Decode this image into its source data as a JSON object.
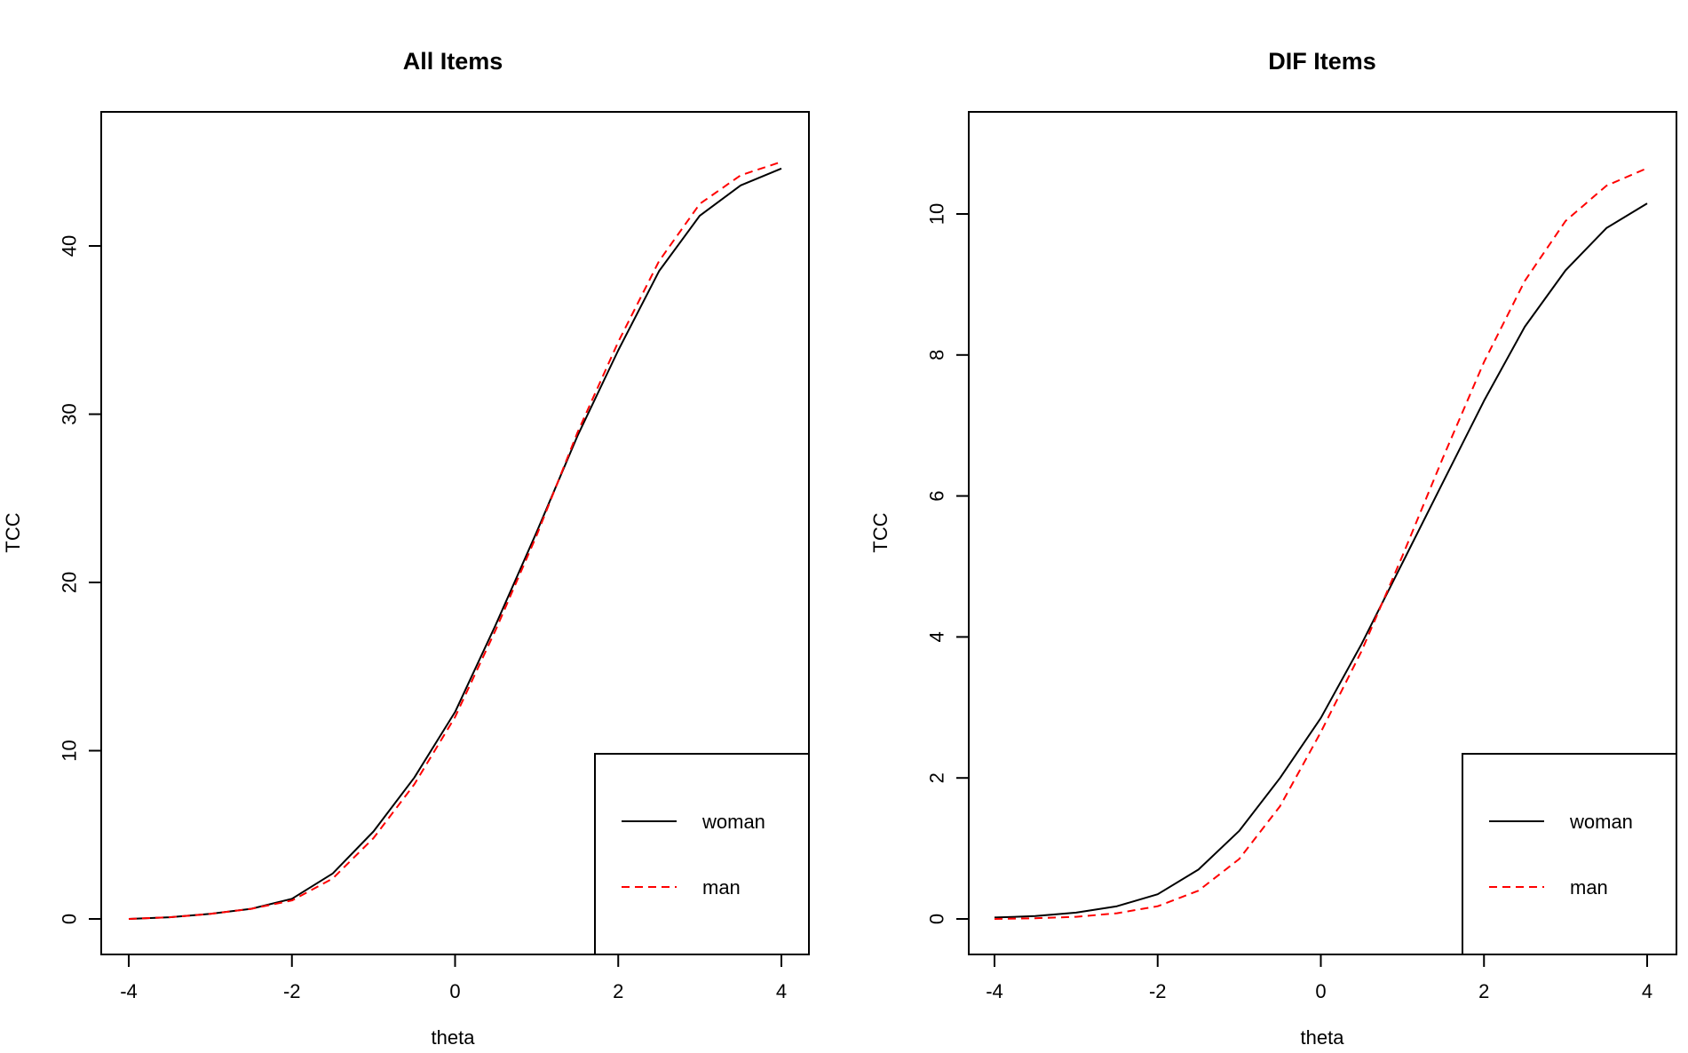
{
  "chart_data": [
    {
      "type": "line",
      "title": "All Items",
      "xlabel": "theta",
      "ylabel": "TCC",
      "xlim": [
        -4,
        4
      ],
      "ylim": [
        0,
        45
      ],
      "xticks": [
        "-4",
        "-2",
        "0",
        "2",
        "4"
      ],
      "yticks": [
        "0",
        "10",
        "20",
        "30",
        "40"
      ],
      "grid": false,
      "legend_position": "bottom-right",
      "x": [
        -4,
        -3.5,
        -3,
        -2.5,
        -2,
        -1.5,
        -1,
        -0.5,
        0,
        0.5,
        1,
        1.5,
        2,
        2.5,
        3,
        3.5,
        4
      ],
      "series": [
        {
          "name": "woman",
          "color": "#000000",
          "dash": "solid",
          "values": [
            0.0,
            0.1,
            0.3,
            0.6,
            1.2,
            2.7,
            5.2,
            8.4,
            12.3,
            17.5,
            23.0,
            28.7,
            33.8,
            38.5,
            41.8,
            43.6,
            44.6
          ]
        },
        {
          "name": "man",
          "color": "#ff0000",
          "dash": "dashed",
          "values": [
            0.0,
            0.1,
            0.3,
            0.6,
            1.1,
            2.4,
            4.8,
            8.0,
            12.0,
            17.2,
            22.8,
            28.9,
            34.3,
            39.1,
            42.5,
            44.2,
            45.0
          ]
        }
      ]
    },
    {
      "type": "line",
      "title": "DIF Items",
      "xlabel": "theta",
      "ylabel": "TCC",
      "xlim": [
        -4,
        4
      ],
      "ylim": [
        0,
        11
      ],
      "xticks": [
        "-4",
        "-2",
        "0",
        "2",
        "4"
      ],
      "yticks": [
        "0",
        "2",
        "4",
        "6",
        "8",
        "10"
      ],
      "grid": false,
      "legend_position": "bottom-right",
      "x": [
        -4,
        -3.5,
        -3,
        -2.5,
        -2,
        -1.5,
        -1,
        -0.5,
        0,
        0.5,
        1,
        1.5,
        2,
        2.5,
        3,
        3.5,
        4
      ],
      "series": [
        {
          "name": "woman",
          "color": "#000000",
          "dash": "solid",
          "values": [
            0.02,
            0.04,
            0.09,
            0.18,
            0.35,
            0.7,
            1.25,
            2.0,
            2.85,
            3.9,
            5.05,
            6.2,
            7.35,
            8.4,
            9.2,
            9.8,
            10.15
          ]
        },
        {
          "name": "man",
          "color": "#ff0000",
          "dash": "dashed",
          "values": [
            0.0,
            0.01,
            0.03,
            0.08,
            0.18,
            0.4,
            0.85,
            1.6,
            2.65,
            3.8,
            5.15,
            6.55,
            7.9,
            9.05,
            9.9,
            10.4,
            10.65
          ]
        }
      ]
    }
  ]
}
